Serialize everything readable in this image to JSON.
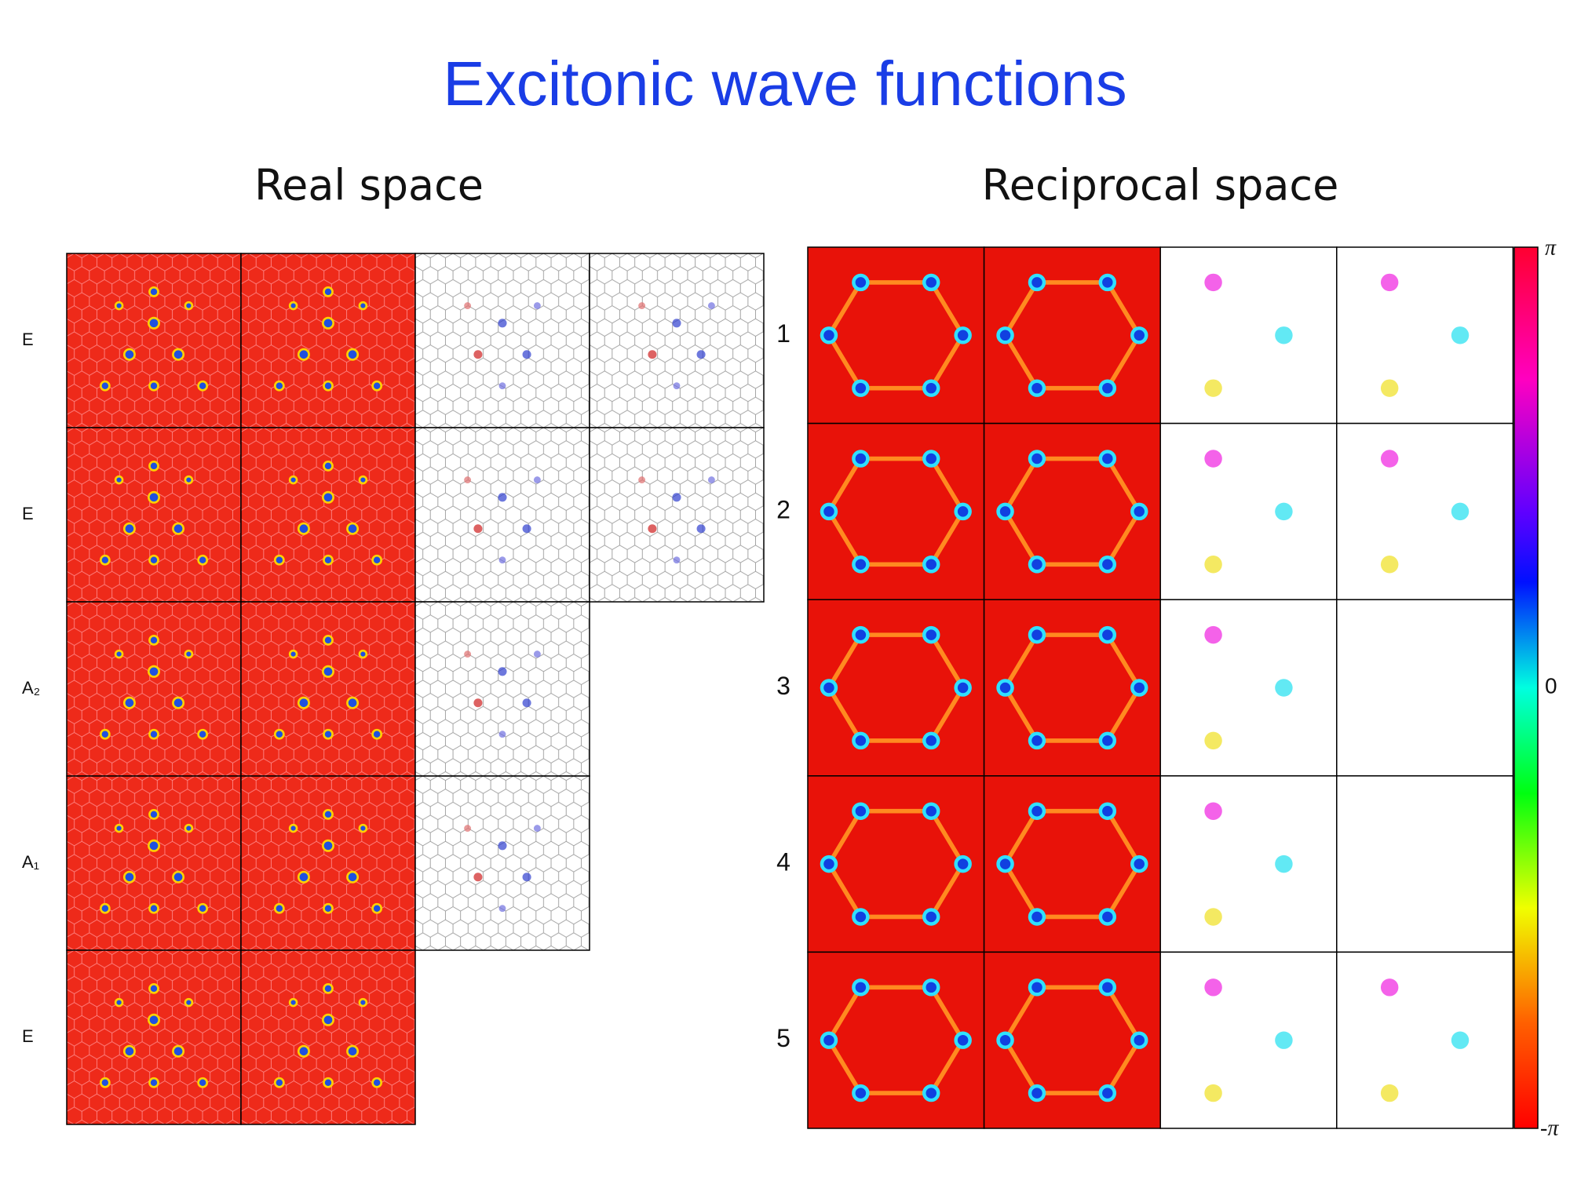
{
  "title": "Excitonic wave functions",
  "real_space": {
    "heading": "Real space",
    "row_labels": [
      "E",
      "E",
      "A₂",
      "A₁",
      "E"
    ]
  },
  "reciprocal_space": {
    "heading": "Reciprocal space",
    "row_labels": [
      "1",
      "2",
      "3",
      "4",
      "5"
    ],
    "colorbar": {
      "top": "π",
      "middle": "0",
      "bottom": "-π"
    }
  }
}
